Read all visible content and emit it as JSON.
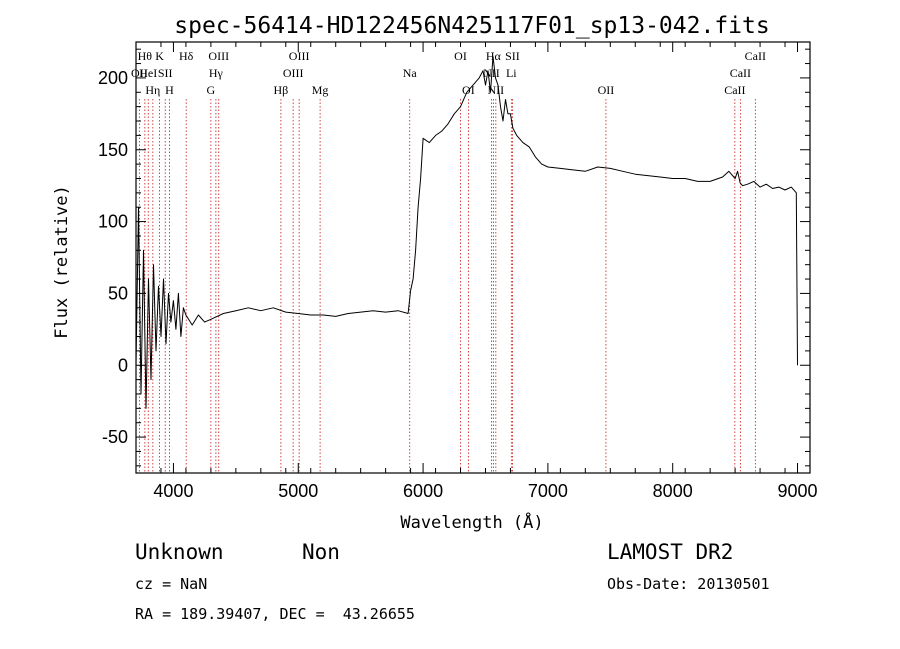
{
  "chart_data": {
    "type": "line",
    "title": "spec-56414-HD122456N425117F01_sp13-042.fits",
    "xlabel": "Wavelength (Å)",
    "ylabel": "Flux (relative)",
    "xlim": [
      3700,
      9100
    ],
    "ylim": [
      -75,
      225
    ],
    "xticks": [
      4000,
      5000,
      6000,
      7000,
      8000,
      9000
    ],
    "yticks": [
      -50,
      0,
      50,
      100,
      150,
      200
    ],
    "series": [
      {
        "x": [
          3700,
          3720,
          3740,
          3760,
          3780,
          3800,
          3820,
          3840,
          3860,
          3880,
          3900,
          3920,
          3940,
          3960,
          3980,
          4000,
          4020,
          4040,
          4060,
          4080,
          4100,
          4150,
          4200,
          4250,
          4300,
          4350,
          4400,
          4500,
          4600,
          4700,
          4800,
          4900,
          5000,
          5100,
          5200,
          5300,
          5400,
          5500,
          5600,
          5700,
          5800,
          5880,
          5900,
          5920,
          5940,
          5960,
          5980,
          6000,
          6050,
          6100,
          6150,
          6200,
          6250,
          6300,
          6350,
          6400,
          6450,
          6480,
          6500,
          6520,
          6540,
          6560,
          6580,
          6600,
          6620,
          6640,
          6660,
          6680,
          6700,
          6720,
          6750,
          6800,
          6850,
          6900,
          6950,
          7000,
          7100,
          7200,
          7300,
          7400,
          7500,
          7600,
          7700,
          7800,
          7900,
          8000,
          8100,
          8200,
          8300,
          8400,
          8450,
          8500,
          8520,
          8540,
          8560,
          8600,
          8650,
          8700,
          8750,
          8800,
          8850,
          8900,
          8950,
          8990,
          9000
        ],
        "y": [
          0,
          110,
          -20,
          80,
          -30,
          60,
          -10,
          70,
          10,
          55,
          20,
          60,
          15,
          50,
          30,
          45,
          25,
          50,
          20,
          40,
          35,
          28,
          35,
          30,
          32,
          34,
          36,
          38,
          40,
          38,
          40,
          37,
          36,
          35,
          35,
          34,
          36,
          37,
          38,
          37,
          38,
          36,
          52,
          60,
          80,
          110,
          130,
          158,
          155,
          160,
          163,
          168,
          175,
          180,
          190,
          195,
          200,
          205,
          195,
          205,
          190,
          215,
          200,
          195,
          180,
          170,
          185,
          175,
          175,
          165,
          160,
          155,
          152,
          145,
          140,
          138,
          137,
          136,
          135,
          138,
          137,
          135,
          133,
          132,
          131,
          130,
          130,
          128,
          128,
          131,
          135,
          130,
          135,
          127,
          125,
          126,
          128,
          124,
          126,
          123,
          124,
          122,
          124,
          120,
          0
        ]
      }
    ],
    "lines": [
      {
        "x": 3727,
        "label": "OII",
        "row": 1
      },
      {
        "x": 3771,
        "label": "Hθ",
        "row": 0
      },
      {
        "x": 3798,
        "label": "HeI",
        "row": 1
      },
      {
        "x": 3835,
        "label": "Hη",
        "row": 2
      },
      {
        "x": 3889,
        "label": "K",
        "row": 0
      },
      {
        "x": 3934,
        "label": "SII",
        "row": 1
      },
      {
        "x": 3968,
        "label": "H",
        "row": 2
      },
      {
        "x": 4102,
        "label": "Hδ",
        "row": 0
      },
      {
        "x": 4300,
        "label": "G",
        "row": 2
      },
      {
        "x": 4340,
        "label": "Hγ",
        "row": 1
      },
      {
        "x": 4363,
        "label": "OIII",
        "row": 0
      },
      {
        "x": 4861,
        "label": "Hβ",
        "row": 2
      },
      {
        "x": 4959,
        "label": "OIII",
        "row": 1
      },
      {
        "x": 5007,
        "label": "OIII",
        "row": 0
      },
      {
        "x": 5175,
        "label": "Mg",
        "row": 2
      },
      {
        "x": 5893,
        "label": "Na",
        "row": 1
      },
      {
        "x": 6300,
        "label": "OI",
        "row": 0
      },
      {
        "x": 6363,
        "label": "OI",
        "row": 2
      },
      {
        "x": 6548,
        "label": "NII",
        "row": 1
      },
      {
        "x": 6563,
        "label": "Hα",
        "row": 0
      },
      {
        "x": 6583,
        "label": "NII",
        "row": 2
      },
      {
        "x": 6707,
        "label": "Li",
        "row": 1
      },
      {
        "x": 6716,
        "label": "SII",
        "row": 0
      },
      {
        "x": 7465,
        "label": "OII",
        "row": 2
      },
      {
        "x": 8498,
        "label": "CaII",
        "row": 2
      },
      {
        "x": 8542,
        "label": "CaII",
        "row": 1
      },
      {
        "x": 8662,
        "label": "CaII",
        "row": 0
      }
    ]
  },
  "footer": {
    "class_label": "Unknown",
    "subclass_label": "Non",
    "survey": "LAMOST DR2",
    "cz": "cz = NaN",
    "obs_date": "Obs-Date: 20130501",
    "radec": "RA = 189.39407, DEC =  43.26655"
  },
  "colors": {
    "line_marker": "#c81818",
    "spectrum": "#000000"
  }
}
